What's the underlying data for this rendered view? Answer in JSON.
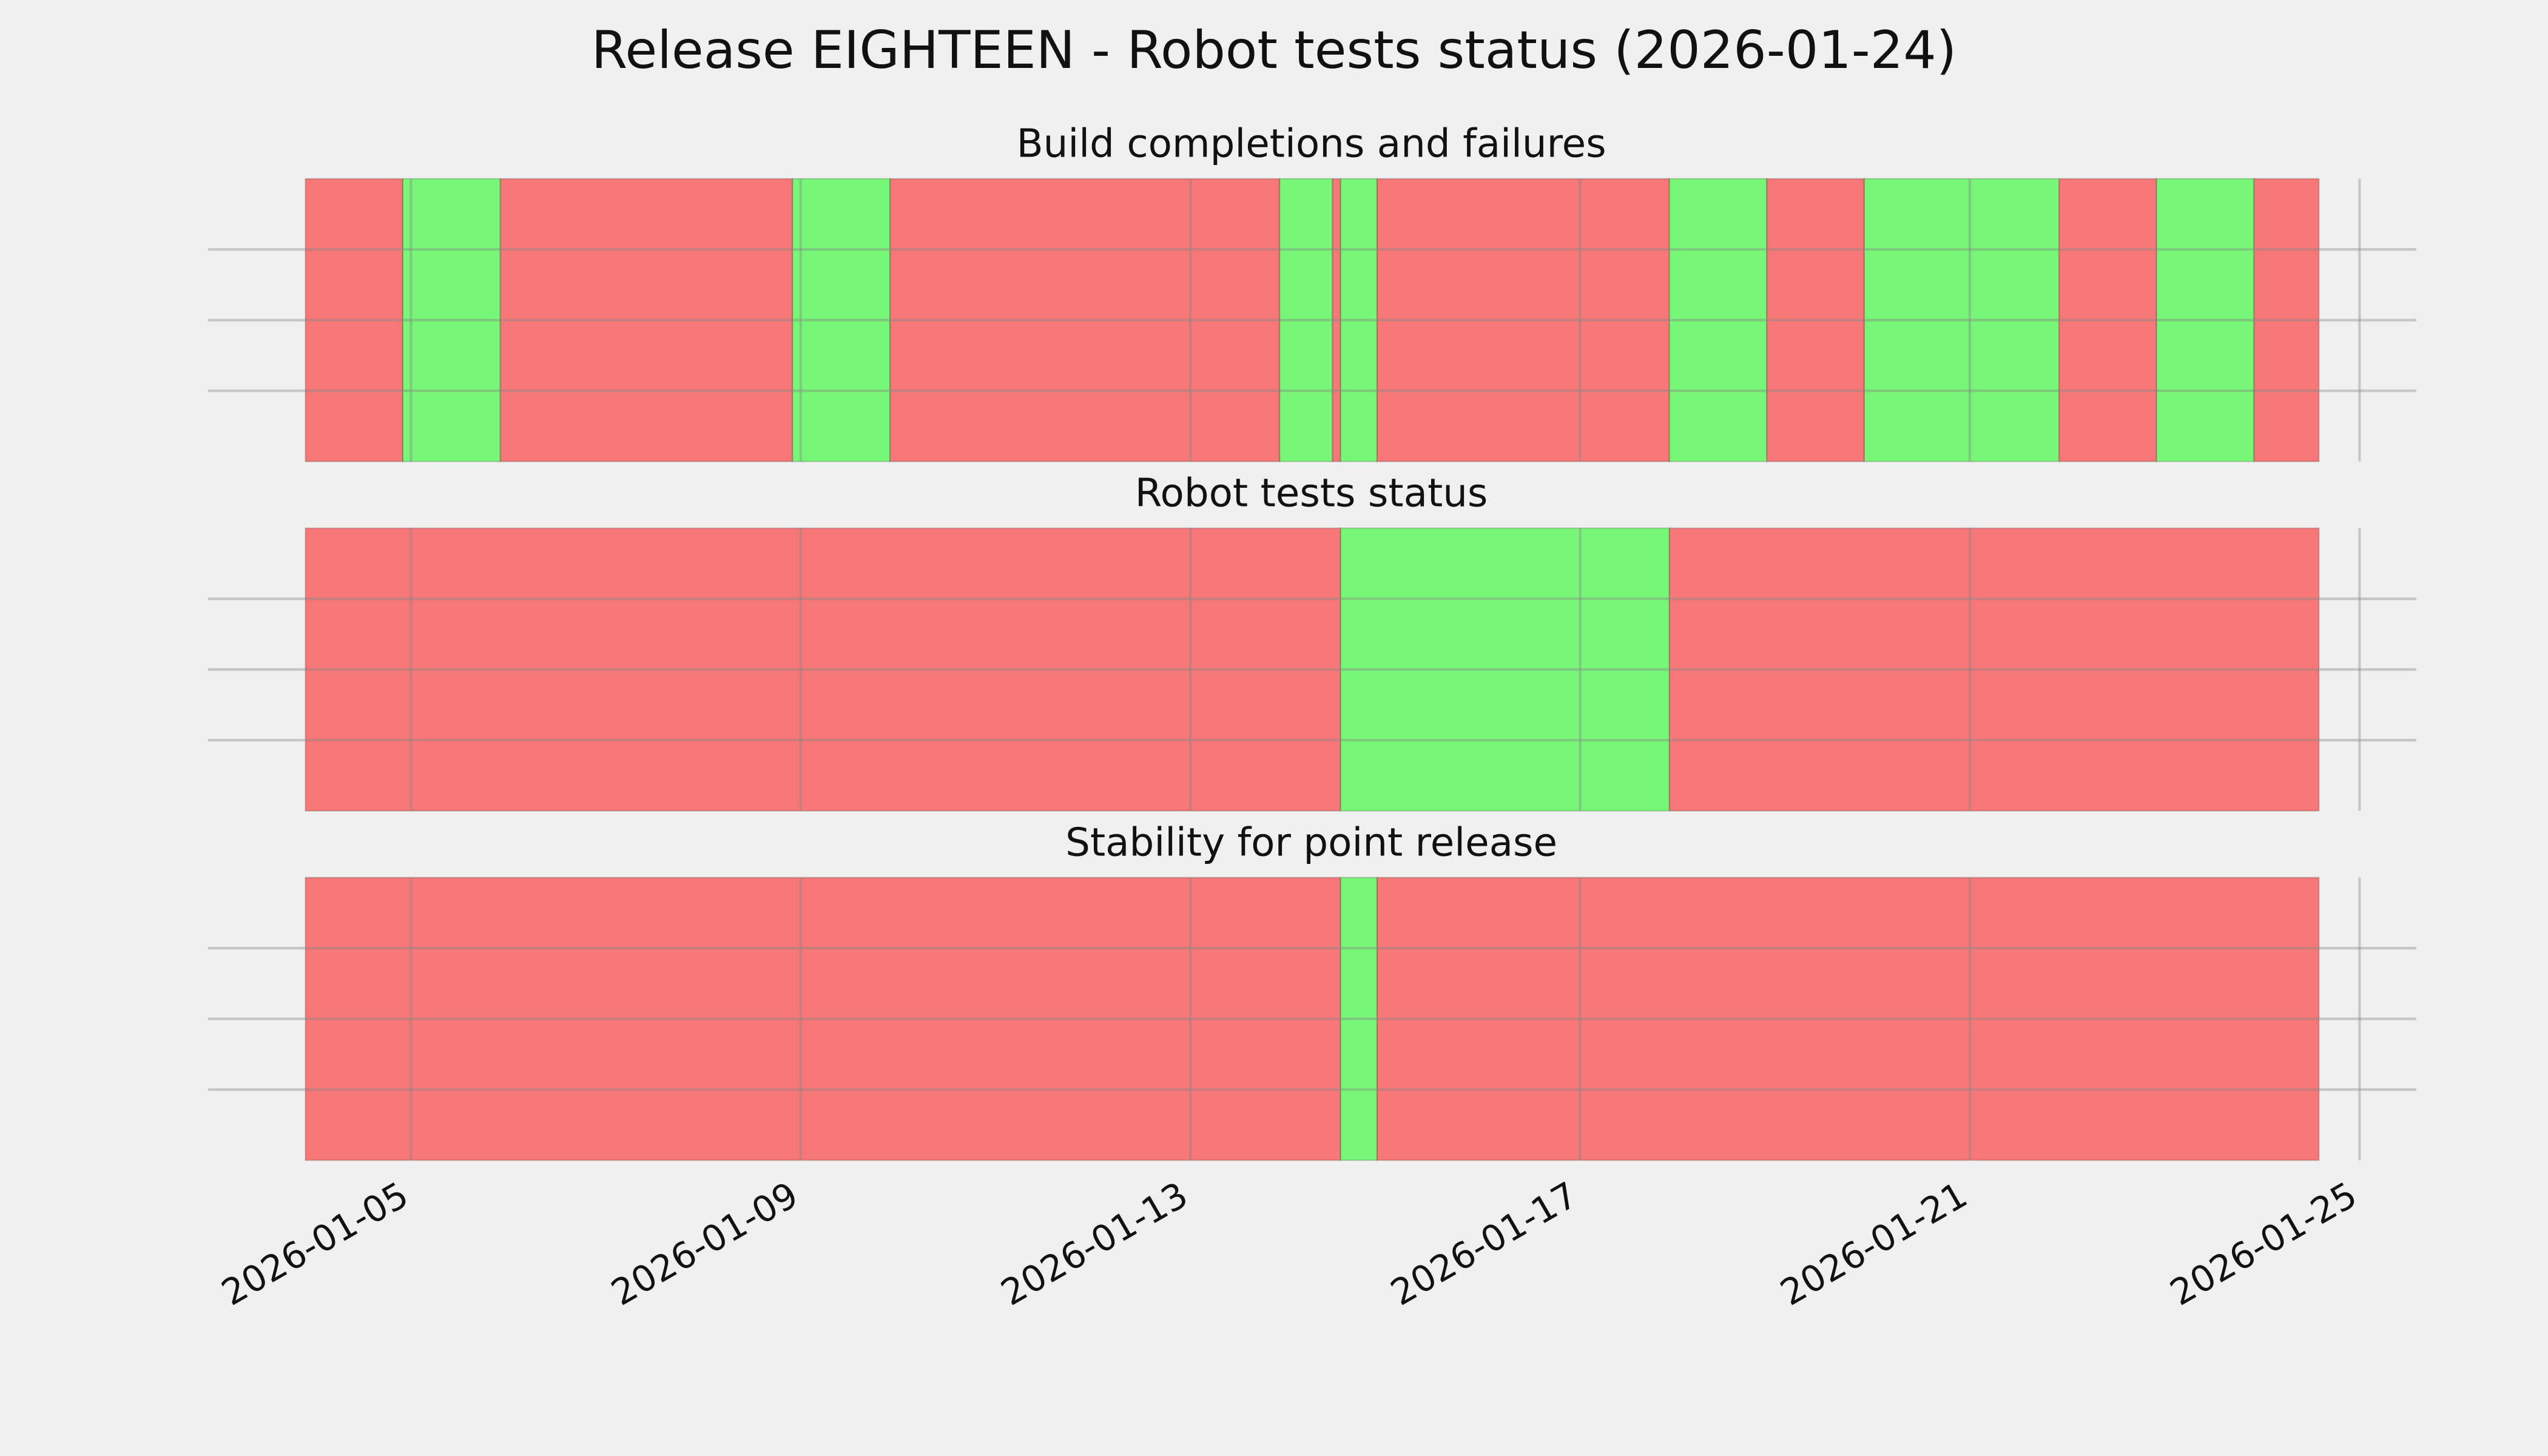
{
  "title": "Release EIGHTEEN - Robot tests status (2026-01-24)",
  "chart_data": [
    {
      "type": "timeline",
      "title": "Build completions and failures",
      "xlim": [
        "2026-01-02T22:00",
        "2026-01-25T14:00"
      ],
      "xticks": [
        "2026-01-05",
        "2026-01-09",
        "2026-01-13",
        "2026-01-17",
        "2026-01-21",
        "2026-01-25"
      ],
      "ylim": [
        0,
        1
      ],
      "yticks": [
        0.25,
        0.5,
        0.75
      ],
      "grid": true,
      "spans": [
        {
          "start": "2026-01-03T22:00",
          "end": "2026-01-04T22:00",
          "color": "#f77777"
        },
        {
          "start": "2026-01-04T22:00",
          "end": "2026-01-05T22:00",
          "color": "#77f777"
        },
        {
          "start": "2026-01-05T22:00",
          "end": "2026-01-08T22:00",
          "color": "#f77777"
        },
        {
          "start": "2026-01-08T22:00",
          "end": "2026-01-09T22:00",
          "color": "#77f777"
        },
        {
          "start": "2026-01-09T22:00",
          "end": "2026-01-13T22:00",
          "color": "#f77777"
        },
        {
          "start": "2026-01-13T22:00",
          "end": "2026-01-14T11:00",
          "color": "#77f777"
        },
        {
          "start": "2026-01-14T11:00",
          "end": "2026-01-14T13:00",
          "color": "#f77777"
        },
        {
          "start": "2026-01-14T13:00",
          "end": "2026-01-14T22:00",
          "color": "#77f777"
        },
        {
          "start": "2026-01-14T22:00",
          "end": "2026-01-17T22:00",
          "color": "#f77777"
        },
        {
          "start": "2026-01-17T22:00",
          "end": "2026-01-18T22:00",
          "color": "#77f777"
        },
        {
          "start": "2026-01-18T22:00",
          "end": "2026-01-19T22:00",
          "color": "#f77777"
        },
        {
          "start": "2026-01-19T22:00",
          "end": "2026-01-21T22:00",
          "color": "#77f777"
        },
        {
          "start": "2026-01-21T22:00",
          "end": "2026-01-22T22:00",
          "color": "#f77777"
        },
        {
          "start": "2026-01-22T22:00",
          "end": "2026-01-23T22:00",
          "color": "#77f777"
        },
        {
          "start": "2026-01-23T22:00",
          "end": "2026-01-24T14:00",
          "color": "#f77777"
        }
      ]
    },
    {
      "type": "timeline",
      "title": "Robot tests status",
      "xlim": [
        "2026-01-02T22:00",
        "2026-01-25T14:00"
      ],
      "xticks": [
        "2026-01-05",
        "2026-01-09",
        "2026-01-13",
        "2026-01-17",
        "2026-01-21",
        "2026-01-25"
      ],
      "ylim": [
        0,
        1
      ],
      "yticks": [
        0.25,
        0.5,
        0.75
      ],
      "grid": true,
      "spans": [
        {
          "start": "2026-01-03T22:00",
          "end": "2026-01-14T13:00",
          "color": "#f77777"
        },
        {
          "start": "2026-01-14T13:00",
          "end": "2026-01-17T22:00",
          "color": "#77f777"
        },
        {
          "start": "2026-01-17T22:00",
          "end": "2026-01-24T14:00",
          "color": "#f77777"
        }
      ]
    },
    {
      "type": "timeline",
      "title": "Stability for point release",
      "xlim": [
        "2026-01-02T22:00",
        "2026-01-25T14:00"
      ],
      "xticks": [
        "2026-01-05",
        "2026-01-09",
        "2026-01-13",
        "2026-01-17",
        "2026-01-21",
        "2026-01-25"
      ],
      "ylim": [
        0,
        1
      ],
      "yticks": [
        0.25,
        0.5,
        0.75
      ],
      "grid": true,
      "show_xticklabels": true,
      "spans": [
        {
          "start": "2026-01-03T22:00",
          "end": "2026-01-14T13:00",
          "color": "#f77777"
        },
        {
          "start": "2026-01-14T13:00",
          "end": "2026-01-14T22:00",
          "color": "#77f777"
        },
        {
          "start": "2026-01-14T22:00",
          "end": "2026-01-24T14:00",
          "color": "#f77777"
        }
      ]
    }
  ]
}
